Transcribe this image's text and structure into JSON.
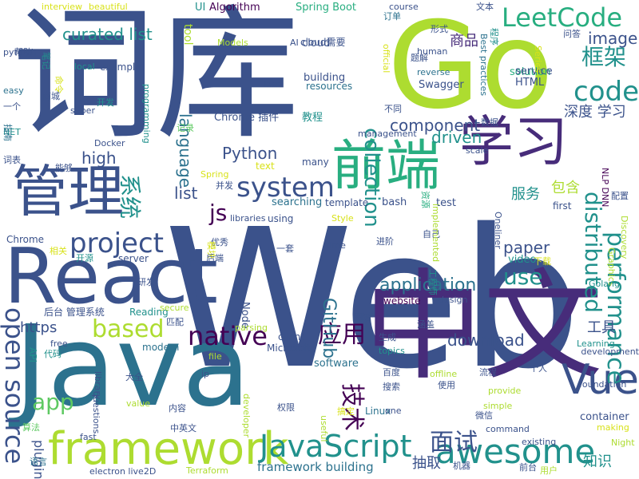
{
  "palette": {
    "c1": "#440154",
    "c2": "#472c7a",
    "c3": "#3b528b",
    "c4": "#2c728e",
    "c5": "#21918c",
    "c6": "#28ae80",
    "c7": "#5ec962",
    "c8": "#addc30",
    "c9": "#d8e219"
  },
  "words": [
    {
      "text": "Web",
      "color": "c3"
    },
    {
      "text": "Java",
      "color": "c4"
    },
    {
      "text": "Go",
      "color": "c8"
    },
    {
      "text": "词库",
      "color": "c3"
    },
    {
      "text": "中文",
      "color": "c2"
    },
    {
      "text": "React",
      "color": "c3"
    },
    {
      "text": "前端",
      "color": "c6"
    },
    {
      "text": "学习",
      "color": "c2"
    },
    {
      "text": "管理",
      "color": "c3"
    },
    {
      "text": "framework",
      "color": "c8"
    },
    {
      "text": "LeetCode",
      "color": "c6"
    },
    {
      "text": "JavaScript",
      "color": "c5"
    },
    {
      "text": "Vue",
      "color": "c3"
    },
    {
      "text": "awesome",
      "color": "c5"
    },
    {
      "text": "open source",
      "color": "c3"
    },
    {
      "text": "performance",
      "color": "c5"
    },
    {
      "text": "distributed",
      "color": "c5"
    },
    {
      "text": "collection",
      "color": "c5"
    },
    {
      "text": "system",
      "color": "c3"
    },
    {
      "text": "project",
      "color": "c3"
    },
    {
      "text": "native",
      "color": "c1"
    },
    {
      "text": "based",
      "color": "c8"
    },
    {
      "text": "code",
      "color": "c5"
    },
    {
      "text": "js",
      "color": "c1"
    },
    {
      "text": "app",
      "color": "c7"
    },
    {
      "text": "use",
      "color": "c5"
    },
    {
      "text": "框架",
      "color": "c5"
    },
    {
      "text": "应用",
      "color": "c1"
    },
    {
      "text": "面试",
      "color": "c3"
    },
    {
      "text": "技术",
      "color": "c1"
    },
    {
      "text": "curated list",
      "color": "c5"
    },
    {
      "text": "image",
      "color": "c3"
    },
    {
      "text": "language",
      "color": "c4"
    },
    {
      "text": "list",
      "color": "c3"
    },
    {
      "text": "系统",
      "color": "c5"
    },
    {
      "text": "GitHub",
      "color": "c4"
    },
    {
      "text": "Python",
      "color": "c3"
    },
    {
      "text": "component",
      "color": "c3"
    },
    {
      "text": "driven",
      "color": "c5"
    },
    {
      "text": "application",
      "color": "c4"
    },
    {
      "text": "download",
      "color": "c3"
    },
    {
      "text": "paper",
      "color": "c3"
    },
    {
      "text": "深度 学习",
      "color": "c3"
    },
    {
      "text": "商品",
      "color": "c2"
    },
    {
      "text": "high",
      "color": "c3"
    },
    {
      "text": "https",
      "color": "c3"
    },
    {
      "text": "工具",
      "color": "c3"
    },
    {
      "text": "服务",
      "color": "c5"
    },
    {
      "text": "包含",
      "color": "c8"
    },
    {
      "text": "知识",
      "color": "c5"
    },
    {
      "text": "抽取",
      "color": "c3"
    },
    {
      "text": "plugin",
      "color": "c3"
    },
    {
      "text": "framework building",
      "color": "c4"
    },
    {
      "text": "container",
      "color": "c3"
    },
    {
      "text": "tool",
      "color": "c8"
    },
    {
      "text": "UI",
      "color": "c5"
    },
    {
      "text": "Algorithm",
      "color": "c1"
    },
    {
      "text": "Spring Boot",
      "color": "c6"
    },
    {
      "text": "solution",
      "color": "c6"
    },
    {
      "text": "service",
      "color": "c3"
    },
    {
      "text": "HTML",
      "color": "c3"
    },
    {
      "text": "Swagger",
      "color": "c3"
    },
    {
      "text": "video",
      "color": "c5"
    },
    {
      "text": "building",
      "color": "c3"
    },
    {
      "text": "resources",
      "color": "c4"
    },
    {
      "text": "example",
      "color": "c3"
    },
    {
      "text": "cloud",
      "color": "c3"
    },
    {
      "text": "searching",
      "color": "c4"
    },
    {
      "text": "bash",
      "color": "c3"
    },
    {
      "text": "test",
      "color": "c3"
    },
    {
      "text": "Linux",
      "color": "c4"
    },
    {
      "text": "software",
      "color": "c4"
    },
    {
      "text": "Chrome 插件",
      "color": "c3"
    },
    {
      "text": "教程",
      "color": "c5"
    },
    {
      "text": "Node",
      "color": "c3"
    },
    {
      "text": "website",
      "color": "c1"
    },
    {
      "text": "client",
      "color": "c3"
    },
    {
      "text": "Microsoft",
      "color": "c3"
    },
    {
      "text": "modern",
      "color": "c4"
    },
    {
      "text": "API",
      "color": "c5"
    },
    {
      "text": "Chrome",
      "color": "c3"
    },
    {
      "text": "server",
      "color": "c3"
    },
    {
      "text": "Reading",
      "color": "c5"
    },
    {
      "text": "后台 管理系统",
      "color": "c3"
    },
    {
      "text": "using",
      "color": "c3"
    },
    {
      "text": "many",
      "color": "c3"
    },
    {
      "text": "text",
      "color": "c9"
    },
    {
      "text": "template",
      "color": "c3"
    },
    {
      "text": "first",
      "color": "c3"
    },
    {
      "text": "配置",
      "color": "c3"
    },
    {
      "text": "cloud需要",
      "color": "c3"
    },
    {
      "text": "Models",
      "color": "c8"
    },
    {
      "text": "AI",
      "color": "c3"
    },
    {
      "text": "human",
      "color": "c3"
    },
    {
      "text": "reverse",
      "color": "c4"
    },
    {
      "text": "official",
      "color": "c9"
    },
    {
      "text": "Best practices",
      "color": "c4"
    },
    {
      "text": "Oneliner",
      "color": "c3"
    },
    {
      "text": "Discovery",
      "color": "c8"
    },
    {
      "text": "Graphics",
      "color": "c8"
    },
    {
      "text": "NLP DNN",
      "color": "c1"
    },
    {
      "text": "Golang",
      "color": "c5"
    },
    {
      "text": "Learning",
      "color": "c5"
    },
    {
      "text": "development",
      "color": "c3"
    },
    {
      "text": "Night",
      "color": "c8"
    },
    {
      "text": "making",
      "color": "c9"
    },
    {
      "text": "existing",
      "color": "c3"
    },
    {
      "text": "command",
      "color": "c3"
    },
    {
      "text": "simple",
      "color": "c8"
    },
    {
      "text": "provide",
      "color": "c8"
    },
    {
      "text": "offline",
      "color": "c8"
    },
    {
      "text": "foundation",
      "color": "c3"
    },
    {
      "text": "Terraform",
      "color": "c8"
    },
    {
      "text": "electron live2D",
      "color": "c3"
    },
    {
      "text": "fast",
      "color": "c3"
    },
    {
      "text": "value",
      "color": "c8"
    },
    {
      "text": "questions",
      "color": "c3"
    },
    {
      "text": "library",
      "color": "c3"
    },
    {
      "text": "free",
      "color": "c3"
    },
    {
      "text": "developer",
      "color": "c8"
    },
    {
      "text": "useful",
      "color": "c8"
    },
    {
      "text": "file",
      "color": "c8"
    },
    {
      "text": "ip",
      "color": "c3"
    },
    {
      "text": "topics",
      "color": "c5"
    },
    {
      "text": "design",
      "color": "c3"
    },
    {
      "text": "secure",
      "color": "c8"
    },
    {
      "text": "parsing",
      "color": "c8"
    },
    {
      "text": "time",
      "color": "c3"
    },
    {
      "text": "Style",
      "color": "c9"
    },
    {
      "text": "libraries",
      "color": "c3"
    },
    {
      "text": "interview",
      "color": "c9"
    },
    {
      "text": "beautiful",
      "color": "c9"
    },
    {
      "text": "course",
      "color": "c3"
    },
    {
      "text": "pytorch",
      "color": "c3"
    },
    {
      "text": "easy",
      "color": "c4"
    },
    {
      "text": "NET",
      "color": "c5"
    },
    {
      "text": "local",
      "color": "c5"
    },
    {
      "text": "super",
      "color": "c3"
    },
    {
      "text": "programming",
      "color": "c5"
    },
    {
      "text": "Docker",
      "color": "c3"
    },
    {
      "text": "less",
      "color": "c3"
    },
    {
      "text": "management",
      "color": "c3"
    },
    {
      "text": "scale",
      "color": "c3"
    },
    {
      "text": "Series",
      "color": "c9"
    },
    {
      "text": "Spring",
      "color": "c9"
    },
    {
      "text": "一个",
      "color": "c3"
    },
    {
      "text": "指南",
      "color": "c4"
    },
    {
      "text": "词表",
      "color": "c3"
    },
    {
      "text": "能够",
      "color": "c3"
    },
    {
      "text": "商城",
      "color": "c3"
    },
    {
      "text": "开发",
      "color": "c5"
    },
    {
      "text": "帮助",
      "color": "c3"
    },
    {
      "text": "笔记",
      "color": "c5"
    },
    {
      "text": "记录",
      "color": "c7"
    },
    {
      "text": "命令",
      "color": "c9"
    },
    {
      "text": "开源",
      "color": "c5"
    },
    {
      "text": "相关",
      "color": "c9"
    },
    {
      "text": "优秀",
      "color": "c3"
    },
    {
      "text": "模块",
      "color": "c9"
    },
    {
      "text": "并发",
      "color": "c3"
    },
    {
      "text": "研发",
      "color": "c3"
    },
    {
      "text": "一套",
      "color": "c3"
    },
    {
      "text": "后端",
      "color": "c3"
    },
    {
      "text": "匹配",
      "color": "c3"
    },
    {
      "text": "大全",
      "color": "c3"
    },
    {
      "text": "代码",
      "color": "c5"
    },
    {
      "text": "算法",
      "color": "c7"
    },
    {
      "text": "语言",
      "color": "c4"
    },
    {
      "text": "中英文",
      "color": "c3"
    },
    {
      "text": "内容",
      "color": "c3"
    },
    {
      "text": "权限",
      "color": "c3"
    },
    {
      "text": "进阶",
      "color": "c3"
    },
    {
      "text": "自己",
      "color": "c3"
    },
    {
      "text": "图谱",
      "color": "c3"
    },
    {
      "text": "生成",
      "color": "c3"
    },
    {
      "text": "涵盖",
      "color": "c3"
    },
    {
      "text": "百度",
      "color": "c3"
    },
    {
      "text": "搜索",
      "color": "c3"
    },
    {
      "text": "使用",
      "color": "c3"
    },
    {
      "text": "流程",
      "color": "c3"
    },
    {
      "text": "微信",
      "color": "c3"
    },
    {
      "text": "搞定",
      "color": "c9"
    },
    {
      "text": "个人",
      "color": "c3"
    },
    {
      "text": "下载",
      "color": "c9"
    },
    {
      "text": "工程师",
      "color": "c5"
    },
    {
      "text": "用户",
      "color": "c8"
    },
    {
      "text": "机器",
      "color": "c3"
    },
    {
      "text": "前台",
      "color": "c3"
    },
    {
      "text": "订单",
      "color": "c4"
    },
    {
      "text": "文本",
      "color": "c3"
    },
    {
      "text": "形式",
      "color": "c3"
    },
    {
      "text": "问答",
      "color": "c3"
    },
    {
      "text": "程序",
      "color": "c5"
    },
    {
      "text": "题解",
      "color": "c3"
    },
    {
      "text": "不同",
      "color": "c3"
    },
    {
      "text": "数据",
      "color": "c3"
    },
    {
      "text": "资源",
      "color": "c6"
    },
    {
      "text": "implemented",
      "color": "c8"
    },
    {
      "text": "one",
      "color": "c3"
    }
  ]
}
